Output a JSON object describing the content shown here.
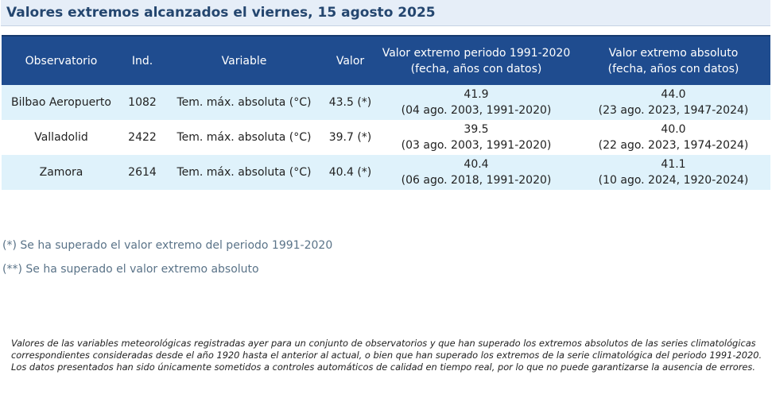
{
  "title": "Valores extremos alcanzados el viernes, 15 agosto 2025",
  "table": {
    "headers": {
      "observatorio": "Observatorio",
      "ind": "Ind.",
      "variable": "Variable",
      "valor": "Valor",
      "periodo_line1": "Valor extremo periodo 1991-2020",
      "periodo_line2": "(fecha, años con datos)",
      "absoluto_line1": "Valor extremo absoluto",
      "absoluto_line2": "(fecha, años con datos)"
    },
    "rows": [
      {
        "observatorio": "Bilbao Aeropuerto",
        "ind": "1082",
        "variable": "Tem. máx. absoluta (°C)",
        "valor": "43.5 (*)",
        "periodo_valor": "41.9",
        "periodo_detalle": "(04 ago. 2003, 1991-2020)",
        "absoluto_valor": "44.0",
        "absoluto_detalle": "(23 ago. 2023, 1947-2024)"
      },
      {
        "observatorio": "Valladolid",
        "ind": "2422",
        "variable": "Tem. máx. absoluta (°C)",
        "valor": "39.7 (*)",
        "periodo_valor": "39.5",
        "periodo_detalle": "(03 ago. 2003, 1991-2020)",
        "absoluto_valor": "40.0",
        "absoluto_detalle": "(22 ago. 2023, 1974-2024)"
      },
      {
        "observatorio": "Zamora",
        "ind": "2614",
        "variable": "Tem. máx. absoluta (°C)",
        "valor": "40.4 (*)",
        "periodo_valor": "40.4",
        "periodo_detalle": "(06 ago. 2018, 1991-2020)",
        "absoluto_valor": "41.1",
        "absoluto_detalle": "(10 ago. 2024, 1920-2024)"
      }
    ]
  },
  "legend": {
    "single": "(*) Se ha superado el valor extremo del periodo 1991-2020",
    "double": "(**) Se ha superado el valor extremo absoluto"
  },
  "footnote": {
    "p1": "Valores de las variables meteorológicas registradas ayer para un conjunto de observatorios y que han superado los extremos absolutos de las series climatológicas correspondientes consideradas desde el año 1920 hasta el anterior al actual, o bien que han superado los extremos de la serie climatológica del periodo 1991-2020.",
    "p2": "Los datos presentados han sido únicamente sometidos a controles automáticos de calidad en tiempo real, por lo que no puede garantizarse la ausencia de errores."
  },
  "colors": {
    "header_bg": "#1f4c8f",
    "row_alt_bg": "#dff2fb",
    "title_bg": "#e6eef8",
    "title_text": "#24466f"
  }
}
